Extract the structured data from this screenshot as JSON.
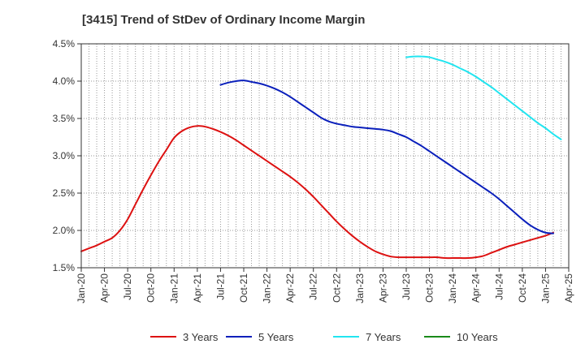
{
  "chart_data": {
    "type": "line",
    "title": "[3415]  Trend of StDev of Ordinary Income Margin",
    "xlabel": "",
    "ylabel": "",
    "x_ticks": [
      "Jan-20",
      "Apr-20",
      "Jul-20",
      "Oct-20",
      "Jan-21",
      "Apr-21",
      "Jul-21",
      "Oct-21",
      "Jan-22",
      "Apr-22",
      "Jul-22",
      "Oct-22",
      "Jan-23",
      "Apr-23",
      "Jul-23",
      "Oct-23",
      "Jan-24",
      "Apr-24",
      "Jul-24",
      "Oct-24",
      "Jan-25",
      "Apr-25"
    ],
    "y_ticks": [
      "1.5%",
      "2.0%",
      "2.5%",
      "3.0%",
      "3.5%",
      "4.0%",
      "4.5%"
    ],
    "ylim": [
      1.5,
      4.5
    ],
    "grid": true,
    "legend_position": "bottom",
    "series": [
      {
        "name": "3 Years",
        "color": "#dd1111",
        "points": [
          [
            "Jan-20",
            1.72
          ],
          [
            "Feb-20",
            1.76
          ],
          [
            "Mar-20",
            1.8
          ],
          [
            "Apr-20",
            1.85
          ],
          [
            "May-20",
            1.9
          ],
          [
            "Jun-20",
            2.0
          ],
          [
            "Jul-20",
            2.15
          ],
          [
            "Aug-20",
            2.35
          ],
          [
            "Sep-20",
            2.55
          ],
          [
            "Oct-20",
            2.74
          ],
          [
            "Nov-20",
            2.92
          ],
          [
            "Dec-20",
            3.08
          ],
          [
            "Jan-21",
            3.24
          ],
          [
            "Feb-21",
            3.33
          ],
          [
            "Mar-21",
            3.38
          ],
          [
            "Apr-21",
            3.4
          ],
          [
            "May-21",
            3.39
          ],
          [
            "Jun-21",
            3.36
          ],
          [
            "Jul-21",
            3.32
          ],
          [
            "Aug-21",
            3.27
          ],
          [
            "Sep-21",
            3.21
          ],
          [
            "Oct-21",
            3.14
          ],
          [
            "Nov-21",
            3.07
          ],
          [
            "Dec-21",
            3.0
          ],
          [
            "Jan-22",
            2.93
          ],
          [
            "Feb-22",
            2.86
          ],
          [
            "Mar-22",
            2.79
          ],
          [
            "Apr-22",
            2.72
          ],
          [
            "May-22",
            2.64
          ],
          [
            "Jun-22",
            2.55
          ],
          [
            "Jul-22",
            2.45
          ],
          [
            "Aug-22",
            2.34
          ],
          [
            "Sep-22",
            2.23
          ],
          [
            "Oct-22",
            2.12
          ],
          [
            "Nov-22",
            2.02
          ],
          [
            "Dec-22",
            1.93
          ],
          [
            "Jan-23",
            1.85
          ],
          [
            "Feb-23",
            1.78
          ],
          [
            "Mar-23",
            1.72
          ],
          [
            "Apr-23",
            1.68
          ],
          [
            "May-23",
            1.65
          ],
          [
            "Jun-23",
            1.64
          ],
          [
            "Jul-23",
            1.64
          ],
          [
            "Aug-23",
            1.64
          ],
          [
            "Sep-23",
            1.64
          ],
          [
            "Oct-23",
            1.64
          ],
          [
            "Nov-23",
            1.64
          ],
          [
            "Dec-23",
            1.63
          ],
          [
            "Jan-24",
            1.63
          ],
          [
            "Feb-24",
            1.63
          ],
          [
            "Mar-24",
            1.63
          ],
          [
            "Apr-24",
            1.64
          ],
          [
            "May-24",
            1.66
          ],
          [
            "Jun-24",
            1.7
          ],
          [
            "Jul-24",
            1.74
          ],
          [
            "Aug-24",
            1.78
          ],
          [
            "Sep-24",
            1.81
          ],
          [
            "Oct-24",
            1.84
          ],
          [
            "Nov-24",
            1.87
          ],
          [
            "Dec-24",
            1.9
          ],
          [
            "Jan-25",
            1.93
          ],
          [
            "Feb-25",
            1.97
          ]
        ]
      },
      {
        "name": "5 Years",
        "color": "#0a1fbb",
        "points": [
          [
            "Jul-21",
            3.95
          ],
          [
            "Aug-21",
            3.98
          ],
          [
            "Sep-21",
            4.0
          ],
          [
            "Oct-21",
            4.01
          ],
          [
            "Nov-21",
            3.99
          ],
          [
            "Dec-21",
            3.97
          ],
          [
            "Jan-22",
            3.94
          ],
          [
            "Feb-22",
            3.9
          ],
          [
            "Mar-22",
            3.85
          ],
          [
            "Apr-22",
            3.79
          ],
          [
            "May-22",
            3.72
          ],
          [
            "Jun-22",
            3.65
          ],
          [
            "Jul-22",
            3.58
          ],
          [
            "Aug-22",
            3.51
          ],
          [
            "Sep-22",
            3.46
          ],
          [
            "Oct-22",
            3.43
          ],
          [
            "Nov-22",
            3.41
          ],
          [
            "Dec-22",
            3.39
          ],
          [
            "Jan-23",
            3.38
          ],
          [
            "Feb-23",
            3.37
          ],
          [
            "Mar-23",
            3.36
          ],
          [
            "Apr-23",
            3.35
          ],
          [
            "May-23",
            3.33
          ],
          [
            "Jun-23",
            3.29
          ],
          [
            "Jul-23",
            3.25
          ],
          [
            "Aug-23",
            3.19
          ],
          [
            "Sep-23",
            3.13
          ],
          [
            "Oct-23",
            3.06
          ],
          [
            "Nov-23",
            2.99
          ],
          [
            "Dec-23",
            2.92
          ],
          [
            "Jan-24",
            2.85
          ],
          [
            "Feb-24",
            2.78
          ],
          [
            "Mar-24",
            2.71
          ],
          [
            "Apr-24",
            2.64
          ],
          [
            "May-24",
            2.57
          ],
          [
            "Jun-24",
            2.5
          ],
          [
            "Jul-24",
            2.42
          ],
          [
            "Aug-24",
            2.33
          ],
          [
            "Sep-24",
            2.24
          ],
          [
            "Oct-24",
            2.15
          ],
          [
            "Nov-24",
            2.07
          ],
          [
            "Dec-24",
            2.01
          ],
          [
            "Jan-25",
            1.97
          ],
          [
            "Feb-25",
            1.96
          ]
        ]
      },
      {
        "name": "7 Years",
        "color": "#22e5f0",
        "points": [
          [
            "Jul-23",
            4.32
          ],
          [
            "Aug-23",
            4.33
          ],
          [
            "Sep-23",
            4.33
          ],
          [
            "Oct-23",
            4.32
          ],
          [
            "Nov-23",
            4.29
          ],
          [
            "Dec-23",
            4.26
          ],
          [
            "Jan-24",
            4.22
          ],
          [
            "Feb-24",
            4.17
          ],
          [
            "Mar-24",
            4.12
          ],
          [
            "Apr-24",
            4.06
          ],
          [
            "May-24",
            3.99
          ],
          [
            "Jun-24",
            3.92
          ],
          [
            "Jul-24",
            3.84
          ],
          [
            "Aug-24",
            3.76
          ],
          [
            "Sep-24",
            3.68
          ],
          [
            "Oct-24",
            3.6
          ],
          [
            "Nov-24",
            3.52
          ],
          [
            "Dec-24",
            3.44
          ],
          [
            "Jan-25",
            3.37
          ],
          [
            "Feb-25",
            3.29
          ],
          [
            "Mar-25",
            3.22
          ]
        ]
      },
      {
        "name": "10 Years",
        "color": "#1a8a1a",
        "points": []
      }
    ]
  }
}
